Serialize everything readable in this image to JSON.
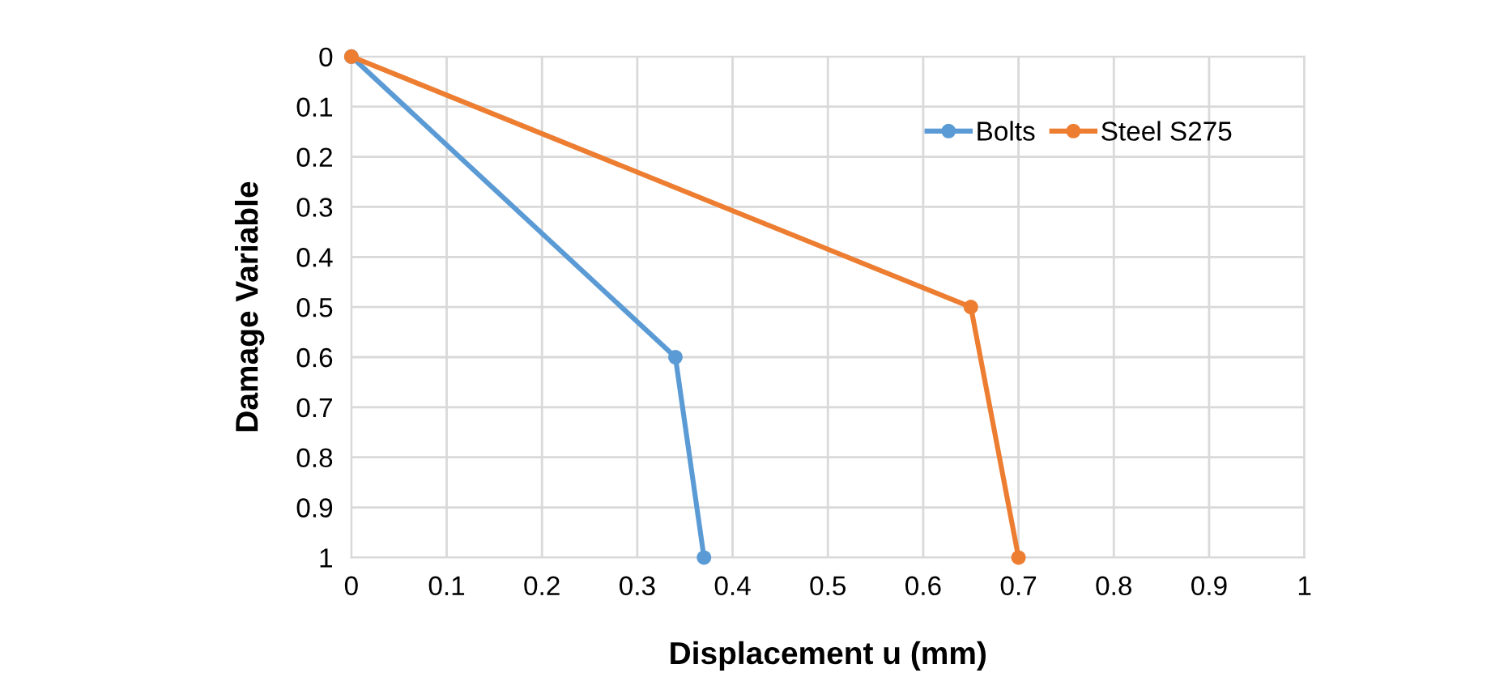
{
  "chart_data": {
    "type": "line",
    "xlabel": "Displacement u (mm)",
    "ylabel": "Damage Variable",
    "series": [
      {
        "name": "Bolts",
        "color": "#5b9bd5",
        "x": [
          0,
          0.34,
          0.37
        ],
        "values": [
          0,
          0.6,
          1
        ]
      },
      {
        "name": "Steel S275",
        "color": "#ed7d31",
        "x": [
          0,
          0.65,
          0.7
        ],
        "values": [
          0,
          0.5,
          1
        ]
      }
    ],
    "xlim": [
      0,
      1
    ],
    "xticks": [
      0,
      0.1,
      0.2,
      0.3,
      0.4,
      0.5,
      0.6,
      0.7,
      0.8,
      0.9,
      1
    ],
    "ylim": [
      1,
      0
    ],
    "yticks": [
      0,
      0.1,
      0.2,
      0.3,
      0.4,
      0.5,
      0.6,
      0.7,
      0.8,
      0.9,
      1
    ],
    "grid": true,
    "legend": "top right",
    "marker": "circle",
    "line_style": "solid"
  }
}
